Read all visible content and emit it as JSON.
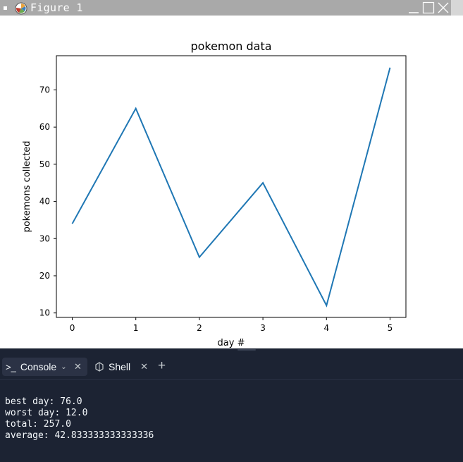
{
  "window": {
    "title": "Figure 1"
  },
  "chart_data": {
    "type": "line",
    "title": "pokemon data",
    "xlabel": "day #",
    "ylabel": "pokemons collected",
    "x": [
      0,
      1,
      2,
      3,
      4,
      5
    ],
    "values": [
      34,
      65,
      25,
      45,
      12,
      76
    ],
    "xlim": [
      -0.25,
      5.25
    ],
    "ylim": [
      8.8,
      79.2
    ],
    "xticks": [
      0,
      1,
      2,
      3,
      4,
      5
    ],
    "yticks": [
      10,
      20,
      30,
      40,
      50,
      60,
      70
    ],
    "line_color": "#1f77b4",
    "grid": false
  },
  "tabs": [
    {
      "label": "Console",
      "icon": "terminal-icon"
    },
    {
      "label": "Shell",
      "icon": "shell-icon"
    }
  ],
  "console": {
    "lines": [
      "best day: 76.0",
      "worst day: 12.0",
      "total: 257.0",
      "average: 42.833333333333336"
    ]
  },
  "colors": {
    "titlebar": "#a9a9a9",
    "panel_bg": "#1c2333",
    "active_tab": "#2b3245",
    "text": "#f5f9fc"
  }
}
